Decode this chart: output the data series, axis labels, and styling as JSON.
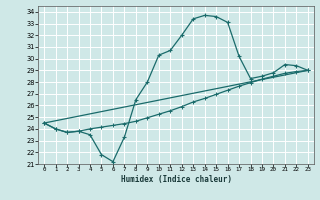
{
  "xlabel": "Humidex (Indice chaleur)",
  "bg_color": "#cfe8e7",
  "grid_color": "#b0d5d4",
  "line_color": "#1a6b6b",
  "xlim": [
    -0.5,
    23.5
  ],
  "ylim": [
    21,
    34.5
  ],
  "xticks": [
    0,
    1,
    2,
    3,
    4,
    5,
    6,
    7,
    8,
    9,
    10,
    11,
    12,
    13,
    14,
    15,
    16,
    17,
    18,
    19,
    20,
    21,
    22,
    23
  ],
  "yticks": [
    21,
    22,
    23,
    24,
    25,
    26,
    27,
    28,
    29,
    30,
    31,
    32,
    33,
    34
  ],
  "line1_x": [
    0,
    1,
    2,
    3,
    4,
    5,
    6,
    7,
    8,
    9,
    10,
    11,
    12,
    13,
    14,
    15,
    16,
    17,
    18,
    19,
    20,
    21,
    22,
    23
  ],
  "line1_y": [
    24.5,
    24.0,
    23.7,
    23.8,
    23.5,
    21.8,
    21.2,
    23.3,
    26.5,
    28.0,
    30.3,
    30.7,
    32.0,
    33.4,
    33.7,
    33.6,
    33.1,
    30.2,
    28.3,
    28.5,
    28.8,
    29.5,
    29.4,
    29.0
  ],
  "line2_x": [
    0,
    1,
    2,
    3,
    4,
    5,
    6,
    7,
    8,
    9,
    10,
    11,
    12,
    13,
    14,
    15,
    16,
    17,
    18,
    19,
    20,
    21,
    22,
    23
  ],
  "line2_y": [
    24.5,
    24.0,
    23.7,
    23.8,
    24.0,
    24.15,
    24.3,
    24.45,
    24.65,
    24.95,
    25.25,
    25.55,
    25.9,
    26.3,
    26.6,
    26.95,
    27.3,
    27.65,
    27.95,
    28.25,
    28.5,
    28.75,
    28.9,
    29.0
  ],
  "line3_x": [
    0,
    23
  ],
  "line3_y": [
    24.5,
    29.0
  ]
}
